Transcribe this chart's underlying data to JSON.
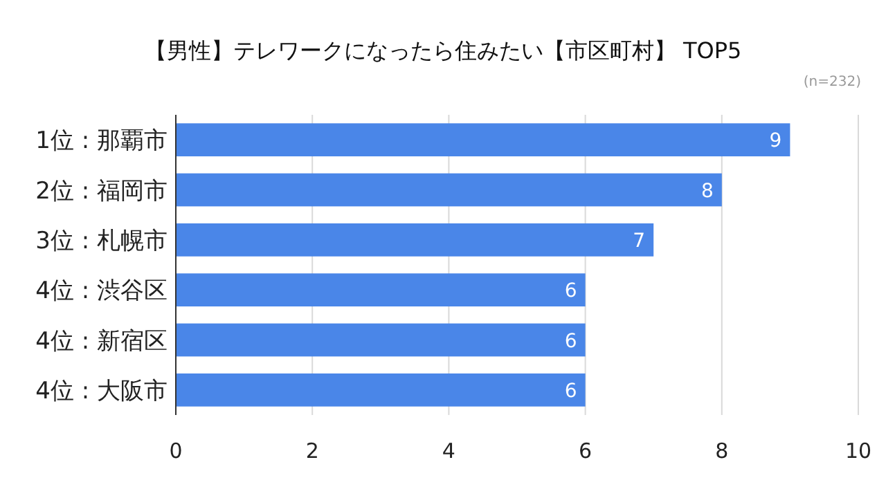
{
  "chart_data": {
    "type": "bar",
    "orientation": "horizontal",
    "title": "【男性】テレワークになったら住みたい【市区町村】 TOP5",
    "annotations": [
      "(n=232)"
    ],
    "categories": [
      "1位 : 那覇市",
      "2位 : 福岡市",
      "3位 : 札幌市",
      "4位 : 渋谷区",
      "4位 : 新宿区",
      "4位 : 大阪市"
    ],
    "values": [
      9,
      8,
      7,
      6,
      6,
      6
    ],
    "color": "#4a86e8",
    "xlim": [
      0,
      10
    ],
    "xticks": [
      0,
      2,
      4,
      6,
      8,
      10
    ],
    "grid": "x",
    "data_labels": true
  }
}
